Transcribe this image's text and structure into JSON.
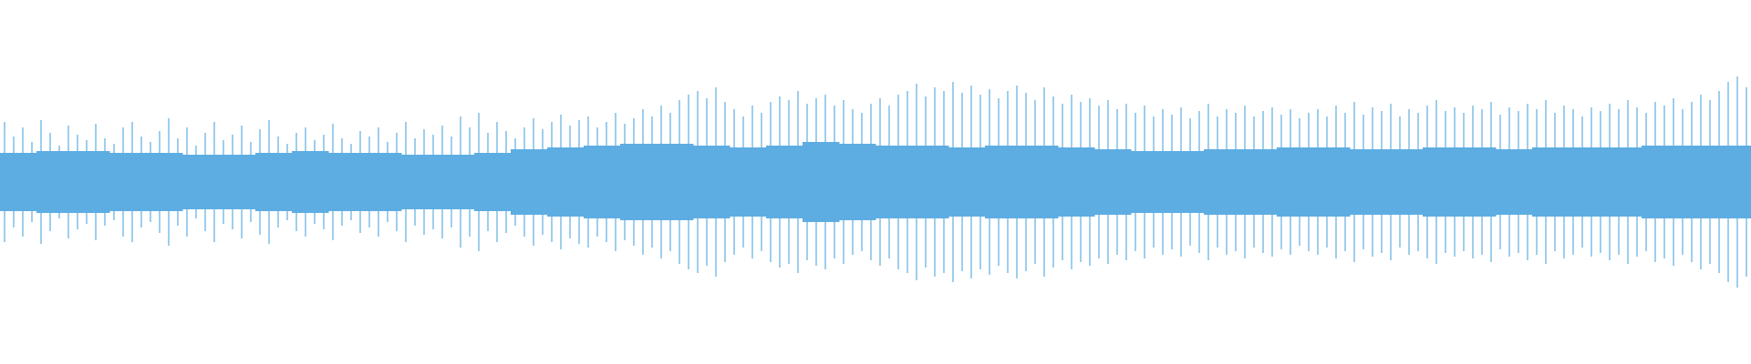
{
  "waveform": {
    "color": "#5dade2",
    "ylim": [
      -1,
      1
    ],
    "peaks": [
      0.33,
      0.25,
      0.3,
      0.22,
      0.34,
      0.27,
      0.2,
      0.31,
      0.26,
      0.23,
      0.32,
      0.24,
      0.21,
      0.3,
      0.33,
      0.25,
      0.22,
      0.28,
      0.35,
      0.24,
      0.3,
      0.2,
      0.27,
      0.33,
      0.23,
      0.26,
      0.31,
      0.22,
      0.29,
      0.34,
      0.25,
      0.21,
      0.27,
      0.3,
      0.23,
      0.26,
      0.32,
      0.24,
      0.21,
      0.28,
      0.25,
      0.3,
      0.22,
      0.27,
      0.33,
      0.24,
      0.29,
      0.26,
      0.31,
      0.25,
      0.36,
      0.3,
      0.38,
      0.27,
      0.33,
      0.28,
      0.24,
      0.3,
      0.35,
      0.29,
      0.33,
      0.37,
      0.31,
      0.34,
      0.36,
      0.3,
      0.33,
      0.38,
      0.32,
      0.35,
      0.4,
      0.36,
      0.42,
      0.38,
      0.45,
      0.48,
      0.5,
      0.46,
      0.52,
      0.44,
      0.4,
      0.36,
      0.42,
      0.38,
      0.44,
      0.47,
      0.45,
      0.5,
      0.43,
      0.46,
      0.48,
      0.42,
      0.45,
      0.4,
      0.38,
      0.43,
      0.46,
      0.42,
      0.48,
      0.5,
      0.54,
      0.47,
      0.52,
      0.5,
      0.55,
      0.49,
      0.53,
      0.48,
      0.51,
      0.46,
      0.5,
      0.53,
      0.49,
      0.45,
      0.52,
      0.47,
      0.43,
      0.48,
      0.44,
      0.46,
      0.42,
      0.45,
      0.4,
      0.43,
      0.38,
      0.42,
      0.36,
      0.4,
      0.37,
      0.41,
      0.35,
      0.39,
      0.43,
      0.36,
      0.4,
      0.38,
      0.42,
      0.36,
      0.39,
      0.41,
      0.37,
      0.4,
      0.35,
      0.38,
      0.4,
      0.36,
      0.42,
      0.38,
      0.44,
      0.37,
      0.41,
      0.39,
      0.43,
      0.36,
      0.4,
      0.38,
      0.42,
      0.45,
      0.39,
      0.41,
      0.38,
      0.42,
      0.4,
      0.44,
      0.37,
      0.41,
      0.39,
      0.43,
      0.4,
      0.45,
      0.38,
      0.42,
      0.4,
      0.36,
      0.41,
      0.39,
      0.43,
      0.4,
      0.45,
      0.41,
      0.38,
      0.44,
      0.42,
      0.46,
      0.4,
      0.44,
      0.48,
      0.45,
      0.5,
      0.55,
      0.58,
      0.52
    ],
    "core": [
      0.16,
      0.17,
      0.17,
      0.16,
      0.16,
      0.15,
      0.15,
      0.16,
      0.17,
      0.16,
      0.16,
      0.15,
      0.15,
      0.16,
      0.18,
      0.19,
      0.2,
      0.21,
      0.21,
      0.2,
      0.19,
      0.2,
      0.22,
      0.21,
      0.2,
      0.2,
      0.19,
      0.2,
      0.2,
      0.19,
      0.18,
      0.17,
      0.17,
      0.18,
      0.18,
      0.19,
      0.19,
      0.18,
      0.18,
      0.19,
      0.19,
      0.18,
      0.19,
      0.19,
      0.19,
      0.2,
      0.2,
      0.2
    ]
  }
}
